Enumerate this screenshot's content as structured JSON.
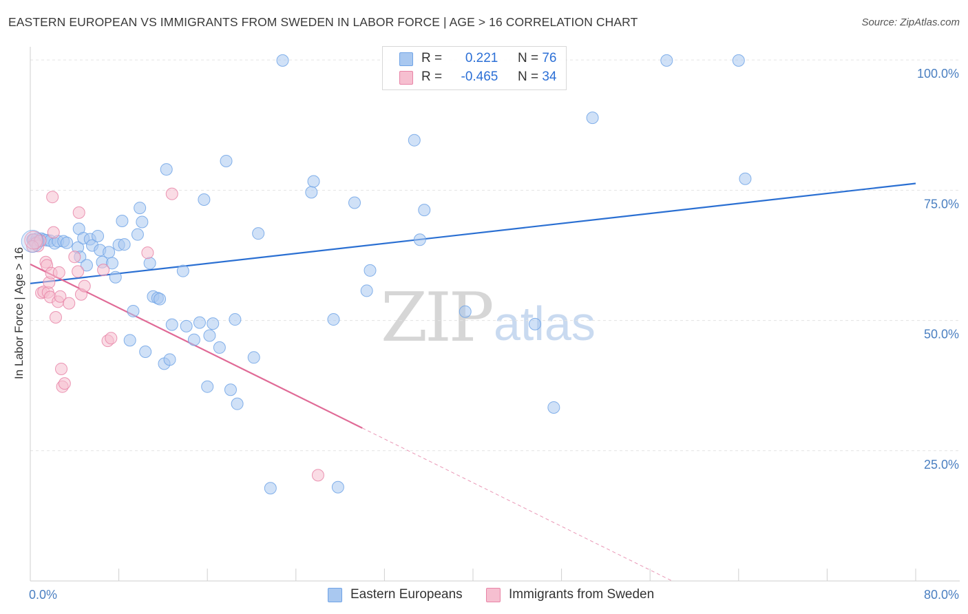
{
  "title": "EASTERN EUROPEAN VS IMMIGRANTS FROM SWEDEN IN LABOR FORCE | AGE > 16 CORRELATION CHART",
  "source": "Source: ZipAtlas.com",
  "watermark": {
    "zip": "ZIP",
    "atlas": "atlas"
  },
  "legend": {
    "rows": [
      {
        "r_label": "R = ",
        "r_value": "0.221",
        "n_label": "N = ",
        "n_value": "76",
        "color": "#a9c8f0"
      },
      {
        "r_label": "R = ",
        "r_value": "-0.465",
        "n_label": "N = ",
        "n_value": "34",
        "color": "#f6bfd0"
      }
    ]
  },
  "bottom_legend": [
    {
      "label": "Eastern Europeans",
      "color": "#a9c8f0"
    },
    {
      "label": "Immigrants from Sweden",
      "color": "#f6bfd0"
    }
  ],
  "chart_data": {
    "type": "scatter",
    "title": "EASTERN EUROPEAN VS IMMIGRANTS FROM SWEDEN IN LABOR FORCE | AGE > 16 CORRELATION CHART",
    "xlabel": "",
    "ylabel": "In Labor Force | Age > 16",
    "xlim": [
      0,
      80
    ],
    "ylim": [
      0,
      102
    ],
    "x_tick_labels": [
      "0.0%",
      "80.0%"
    ],
    "y_ticks": [
      {
        "value": 25,
        "label": "25.0%"
      },
      {
        "value": 50,
        "label": "50.0%"
      },
      {
        "value": 75,
        "label": "75.0%"
      },
      {
        "value": 100,
        "label": "100.0%"
      }
    ],
    "grid": true,
    "legend_position": "top-center",
    "series": [
      {
        "name": "Eastern Europeans",
        "color": "#6fa3e6",
        "fill": "#a9c8f0",
        "trend": {
          "x0": 0,
          "y0": 57.1,
          "x1": 80,
          "y1": 76.3,
          "solid_until": 80
        },
        "points": [
          [
            0.2,
            65.5
          ],
          [
            0.4,
            65.0
          ],
          [
            0.6,
            65.7
          ],
          [
            0.8,
            65.2
          ],
          [
            1.0,
            65.7
          ],
          [
            1.2,
            65.5
          ],
          [
            1.5,
            65.4
          ],
          [
            1.8,
            65.3
          ],
          [
            2.2,
            64.8
          ],
          [
            2.5,
            65.2
          ],
          [
            3.0,
            65.2
          ],
          [
            3.3,
            64.9
          ],
          [
            4.3,
            64.0
          ],
          [
            4.5,
            62.2
          ],
          [
            5.1,
            60.6
          ],
          [
            4.4,
            67.6
          ],
          [
            4.8,
            65.8
          ],
          [
            5.4,
            65.6
          ],
          [
            5.6,
            64.4
          ],
          [
            6.1,
            66.2
          ],
          [
            6.3,
            63.5
          ],
          [
            6.5,
            61.2
          ],
          [
            7.1,
            63.1
          ],
          [
            7.4,
            61.0
          ],
          [
            7.7,
            58.3
          ],
          [
            8.0,
            64.5
          ],
          [
            8.3,
            69.1
          ],
          [
            8.5,
            64.6
          ],
          [
            9.0,
            46.2
          ],
          [
            9.3,
            51.8
          ],
          [
            9.7,
            66.5
          ],
          [
            9.9,
            71.6
          ],
          [
            10.1,
            68.9
          ],
          [
            10.4,
            44.0
          ],
          [
            10.8,
            61.0
          ],
          [
            11.1,
            54.6
          ],
          [
            11.5,
            54.3
          ],
          [
            11.7,
            54.1
          ],
          [
            12.1,
            41.7
          ],
          [
            12.3,
            79.0
          ],
          [
            12.6,
            42.5
          ],
          [
            12.8,
            49.2
          ],
          [
            13.8,
            59.5
          ],
          [
            14.1,
            48.9
          ],
          [
            14.8,
            46.3
          ],
          [
            15.3,
            49.6
          ],
          [
            15.7,
            73.2
          ],
          [
            16.0,
            37.3
          ],
          [
            16.2,
            47.1
          ],
          [
            16.5,
            49.4
          ],
          [
            17.1,
            44.8
          ],
          [
            17.7,
            80.6
          ],
          [
            18.1,
            36.7
          ],
          [
            18.5,
            50.2
          ],
          [
            18.7,
            34.0
          ],
          [
            20.2,
            42.9
          ],
          [
            20.6,
            66.7
          ],
          [
            21.7,
            17.8
          ],
          [
            22.8,
            99.9
          ],
          [
            25.4,
            74.6
          ],
          [
            25.6,
            76.7
          ],
          [
            27.4,
            50.2
          ],
          [
            27.8,
            18.0
          ],
          [
            29.3,
            72.6
          ],
          [
            30.4,
            55.7
          ],
          [
            30.7,
            59.6
          ],
          [
            34.7,
            84.6
          ],
          [
            35.2,
            65.5
          ],
          [
            35.6,
            71.2
          ],
          [
            39.3,
            51.7
          ],
          [
            45.6,
            49.3
          ],
          [
            47.3,
            33.3
          ],
          [
            50.8,
            88.9
          ],
          [
            57.5,
            99.9
          ],
          [
            64.0,
            99.9
          ],
          [
            64.6,
            77.2
          ]
        ]
      },
      {
        "name": "Immigrants from Sweden",
        "color": "#e883a6",
        "fill": "#f6bfd0",
        "trend": {
          "x0": 0,
          "y0": 60.8,
          "x1": 58,
          "y1": 0,
          "solid_until": 30
        },
        "points": [
          [
            0.3,
            65.5
          ],
          [
            0.5,
            64.8
          ],
          [
            0.7,
            64.3
          ],
          [
            0.9,
            65.3
          ],
          [
            1.0,
            55.3
          ],
          [
            1.2,
            55.5
          ],
          [
            1.4,
            61.2
          ],
          [
            1.5,
            60.6
          ],
          [
            1.6,
            55.4
          ],
          [
            1.7,
            57.3
          ],
          [
            1.8,
            54.5
          ],
          [
            1.9,
            59.1
          ],
          [
            2.0,
            73.7
          ],
          [
            2.1,
            66.9
          ],
          [
            2.3,
            50.6
          ],
          [
            2.5,
            53.6
          ],
          [
            2.6,
            59.2
          ],
          [
            2.7,
            54.6
          ],
          [
            2.8,
            40.7
          ],
          [
            2.9,
            37.3
          ],
          [
            3.1,
            37.9
          ],
          [
            3.5,
            53.3
          ],
          [
            4.0,
            62.2
          ],
          [
            4.3,
            59.4
          ],
          [
            4.4,
            70.7
          ],
          [
            4.6,
            55.0
          ],
          [
            4.9,
            56.6
          ],
          [
            6.6,
            59.7
          ],
          [
            7.0,
            46.1
          ],
          [
            7.3,
            46.6
          ],
          [
            10.6,
            63.0
          ],
          [
            12.8,
            74.3
          ],
          [
            26.0,
            20.3
          ],
          [
            0.2,
            64.2
          ]
        ]
      }
    ]
  }
}
